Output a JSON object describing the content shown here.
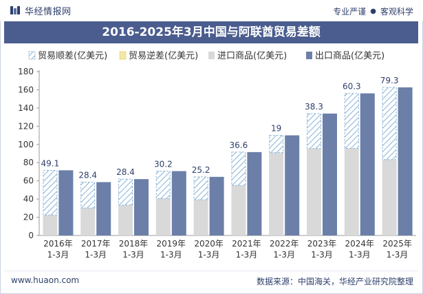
{
  "header": {
    "brand": "华经情报网",
    "slogan_left": "专业严谨",
    "slogan_right": "客观科学"
  },
  "title": "2016-2025年3月中国与阿联酋贸易差额",
  "footer": {
    "website": "www.huaon.com",
    "source": "数据来源：中国海关，华经产业研究院整理"
  },
  "colors": {
    "title_bg": "#4b5d8e",
    "import": "#d9d9d9",
    "export": "#6b7fa8",
    "surplus_stripe": "#8fb7d8",
    "deficit_fill": "#f3e6a8",
    "text": "#2c3e6b"
  },
  "chart_data": {
    "type": "bar",
    "categories": [
      "2016年\n1-3月",
      "2017年\n1-3月",
      "2018年\n1-3月",
      "2019年\n1-3月",
      "2020年\n1-3月",
      "2021年\n1-3月",
      "2022年\n1-3月",
      "2023年\n1-3月",
      "2024年\n1-3月",
      "2025年\n1-3月"
    ],
    "series": [
      {
        "name": "贸易顺差(亿美元)",
        "values": [
          49.1,
          28.4,
          28.4,
          30.2,
          25.2,
          36.6,
          19,
          38.3,
          60.3,
          79.3
        ]
      },
      {
        "name": "贸易逆差(亿美元)",
        "values": [
          0,
          0,
          0,
          0,
          0,
          0,
          0,
          0,
          0,
          0
        ]
      },
      {
        "name": "进口商品(亿美元)",
        "values": [
          22.5,
          30.2,
          33.5,
          40.5,
          39.2,
          55.0,
          91.0,
          95.6,
          95.8,
          83.4
        ]
      },
      {
        "name": "出口商品(亿美元)",
        "values": [
          71.6,
          58.6,
          61.9,
          70.7,
          64.4,
          91.6,
          110.0,
          133.9,
          156.1,
          162.7
        ]
      }
    ],
    "data_labels": [
      "49.1",
      "28.4",
      "28.4",
      "30.2",
      "25.2",
      "36.6",
      "19",
      "38.3",
      "60.3",
      "79.3"
    ],
    "ylim": [
      0,
      180
    ],
    "yticks": [
      0,
      20,
      40,
      60,
      80,
      100,
      120,
      140,
      160,
      180
    ],
    "legend_position": "top",
    "grid": false
  }
}
